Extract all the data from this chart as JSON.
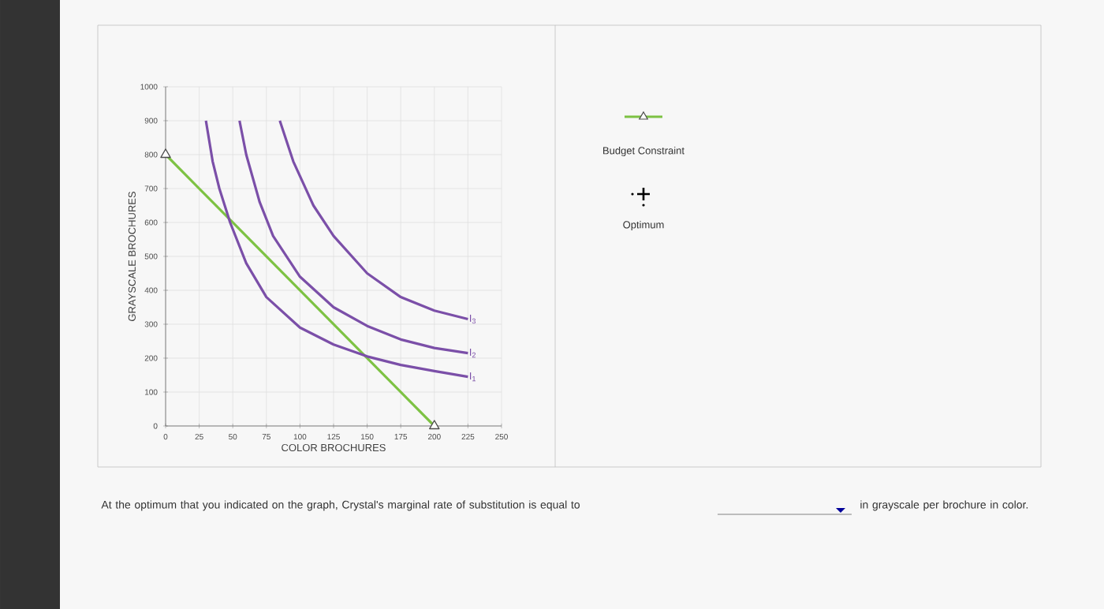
{
  "chart_data": {
    "type": "line",
    "xlabel": "COLOR BROCHURES",
    "ylabel": "GRAYSCALE BROCHURES",
    "xlim": [
      0,
      250
    ],
    "ylim": [
      0,
      1000
    ],
    "xticks": [
      0,
      25,
      50,
      75,
      100,
      125,
      150,
      175,
      200,
      225,
      250
    ],
    "yticks": [
      0,
      100,
      200,
      300,
      400,
      500,
      600,
      700,
      800,
      900,
      1000
    ],
    "grid": true,
    "legend": "right",
    "line_style": "solid",
    "series": [
      {
        "name": "Budget Constraint",
        "color": "#7dc243",
        "marker": "triangle",
        "x": [
          0,
          200
        ],
        "values": [
          800,
          0
        ]
      },
      {
        "name": "I$_{1}$",
        "color": "#7b4fa8",
        "marker": "none",
        "x": [
          30,
          35,
          40,
          48,
          60,
          75,
          100,
          125,
          150,
          175,
          200,
          225
        ],
        "values": [
          900,
          780,
          700,
          600,
          480,
          380,
          290,
          240,
          205,
          180,
          162,
          145
        ]
      },
      {
        "name": "I$_{2}$",
        "color": "#7b4fa8",
        "marker": "none",
        "x": [
          55,
          60,
          70,
          80,
          100,
          125,
          150,
          175,
          200,
          225
        ],
        "values": [
          900,
          800,
          660,
          560,
          440,
          350,
          295,
          255,
          230,
          215
        ]
      },
      {
        "name": "I$_{3}$",
        "color": "#7b4fa8",
        "marker": "none",
        "x": [
          85,
          95,
          110,
          125,
          150,
          175,
          200,
          225
        ],
        "values": [
          900,
          780,
          650,
          560,
          450,
          380,
          340,
          315
        ]
      }
    ],
    "annotations": [
      "Optimum",
      "At the optimum that you indicated on the graph, Crystal's marginal rate of substitution is equal to",
      "in grayscale per brochure in color."
    ]
  }
}
